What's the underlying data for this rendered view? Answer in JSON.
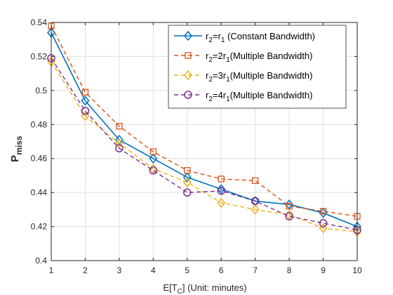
{
  "chart_data": {
    "type": "line",
    "xlabel": {
      "main": "E[T",
      "sub": "C",
      "rest": "] (Unit: minutes)"
    },
    "ylabel": {
      "main": "P",
      "sub": "miss"
    },
    "xlim": [
      1,
      10
    ],
    "ylim": [
      0.4,
      0.54
    ],
    "x": [
      1,
      2,
      3,
      4,
      5,
      6,
      7,
      8,
      9,
      10
    ],
    "xticks": [
      "1",
      "2",
      "3",
      "4",
      "5",
      "6",
      "7",
      "8",
      "9",
      "10"
    ],
    "yticks": [
      "0.4",
      "0.42",
      "0.44",
      "0.46",
      "0.48",
      "0.5",
      "0.52",
      "0.54"
    ],
    "grid": true,
    "legend_position": "top-right",
    "series": [
      {
        "legend": {
          "a": "r",
          "a_sub": "2",
          "b": "=r",
          "b_sub": "1",
          "c": " (Constant Bandwidth)"
        },
        "color": "#0072BD",
        "marker": "diamond",
        "dash": "solid",
        "values": [
          0.534,
          0.494,
          0.471,
          0.46,
          0.449,
          0.442,
          0.435,
          0.433,
          0.428,
          0.42
        ]
      },
      {
        "legend": {
          "a": "r",
          "a_sub": "2",
          "b": "=2r",
          "b_sub": "1",
          "c": "(Multiple Bandwidth)"
        },
        "color": "#D95319",
        "marker": "square",
        "dash": "dashed",
        "values": [
          0.538,
          0.499,
          0.479,
          0.464,
          0.453,
          0.448,
          0.447,
          0.432,
          0.429,
          0.426
        ]
      },
      {
        "legend": {
          "a": "r",
          "a_sub": "2",
          "b": "=3r",
          "b_sub": "1",
          "c": "(Multiple Bandwidth)"
        },
        "color": "#EDB120",
        "marker": "diamond",
        "dash": "dashed",
        "values": [
          0.517,
          0.485,
          0.469,
          0.454,
          0.446,
          0.434,
          0.43,
          0.427,
          0.419,
          0.417
        ]
      },
      {
        "legend": {
          "a": "r",
          "a_sub": "2",
          "b": "=4r",
          "b_sub": "1",
          "c": "(Multiple Bandwidth)"
        },
        "color": "#7E2F8E",
        "marker": "circle",
        "dash": "dashed",
        "values": [
          0.519,
          0.488,
          0.466,
          0.453,
          0.44,
          0.441,
          0.435,
          0.426,
          0.422,
          0.418
        ]
      }
    ]
  }
}
